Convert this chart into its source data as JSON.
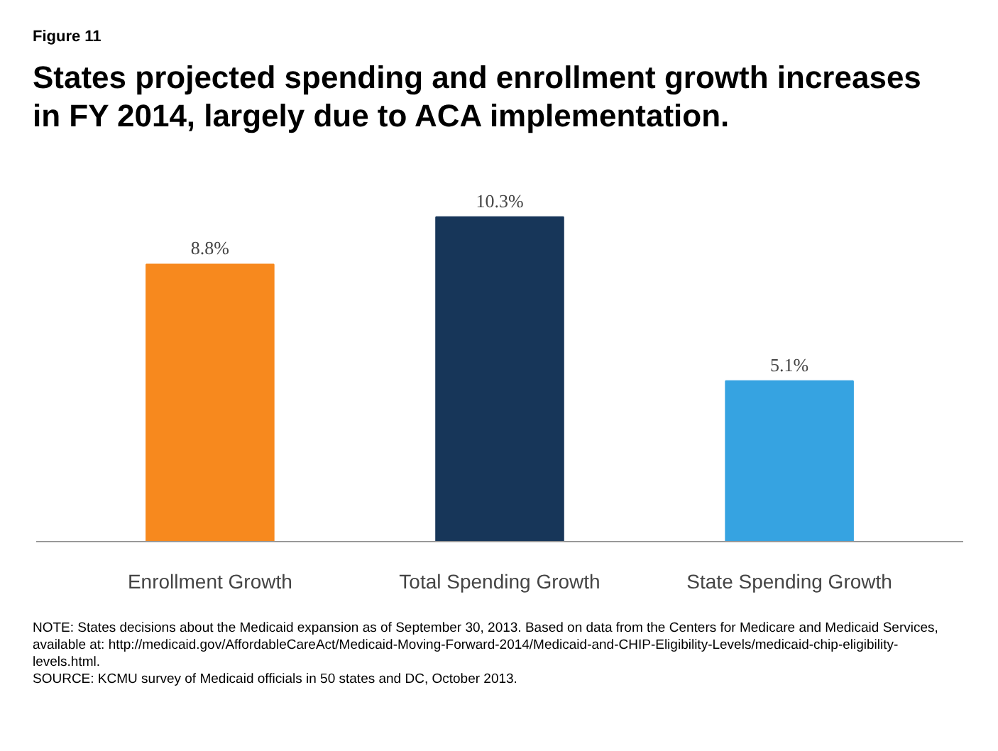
{
  "chart_data": {
    "type": "bar",
    "subtitle": "Figure 11",
    "title": "States projected spending and enrollment growth increases in FY 2014, largely due to ACA implementation.",
    "categories": [
      "Enrollment Growth",
      "Total Spending Growth",
      "State Spending Growth"
    ],
    "values": [
      8.8,
      10.3,
      5.1
    ],
    "colors": [
      "#f7891e",
      "#173659",
      "#36a3e1"
    ],
    "value_labels": [
      "8.8%",
      "10.3%",
      "5.1%"
    ],
    "annotations": [
      "NOTE: States decisions about the Medicaid expansion as of September 30, 2013. Based on data from the Centers for Medicare and Medicaid Services, available at: http://medicaid.gov/AffordableCareAct/Medicaid-Moving-Forward-2014/Medicaid-and-CHIP-Eligibility-Levels/medicaid-chip-eligibility-levels.html.",
      "SOURCE: KCMU survey of Medicaid officials in 50 states and DC, October 2013."
    ]
  }
}
